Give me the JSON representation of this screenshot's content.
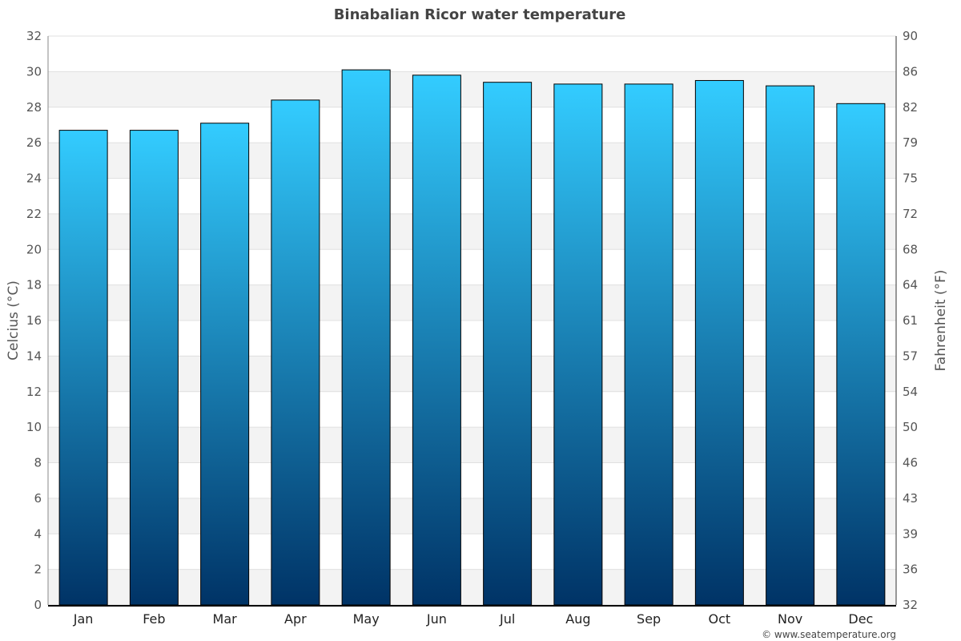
{
  "chart_data": {
    "type": "bar",
    "title": "Binabalian Ricor water temperature",
    "xlabel": "",
    "ylabel": "Celcius (°C)",
    "ylabel_right": "Fahrenheit (°F)",
    "categories": [
      "Jan",
      "Feb",
      "Mar",
      "Apr",
      "May",
      "Jun",
      "Jul",
      "Aug",
      "Sep",
      "Oct",
      "Nov",
      "Dec"
    ],
    "values": [
      26.7,
      26.7,
      27.1,
      28.4,
      30.1,
      29.8,
      29.4,
      29.3,
      29.3,
      29.5,
      29.2,
      28.2
    ],
    "ylim": [
      0,
      32
    ],
    "yticks": [
      0,
      2,
      4,
      6,
      8,
      10,
      12,
      14,
      16,
      18,
      20,
      22,
      24,
      26,
      28,
      30,
      32
    ],
    "yticks_right": [
      32,
      36,
      39,
      43,
      46,
      50,
      54,
      57,
      61,
      64,
      68,
      72,
      75,
      79,
      82,
      86,
      90
    ],
    "grid": true,
    "colors": {
      "bar_top": "#33ccff",
      "bar_bottom": "#003366",
      "band": "#f3f3f3"
    }
  },
  "credit": "© www.seatemperature.org"
}
